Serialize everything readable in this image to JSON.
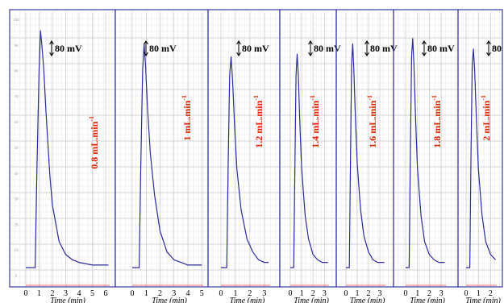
{
  "chart_data": [
    {
      "type": "line",
      "title": "",
      "flow_label": "0.8 mL.min",
      "flow_label_sup": "-1",
      "scale_label": "80 mV",
      "xlabel": "Time (min)",
      "xticks": [
        0,
        1,
        2,
        3,
        4,
        5,
        6
      ],
      "xlim": [
        0,
        6.3
      ],
      "ylim": [
        0,
        100
      ],
      "series": [
        {
          "x": [
            0,
            0.7,
            0.85,
            1.0,
            1.1,
            1.2,
            1.35,
            1.5,
            1.8,
            2.0,
            2.5,
            3.0,
            3.5,
            4.0,
            5.0,
            6.0
          ],
          "y": [
            4,
            4,
            45,
            80,
            95,
            90,
            80,
            65,
            40,
            28,
            14,
            9,
            7,
            6,
            5,
            5
          ]
        }
      ]
    },
    {
      "type": "line",
      "title": "",
      "flow_label": "1 mL.min",
      "flow_label_sup": "-1",
      "scale_label": "80 mV",
      "xlabel": "Time (min)",
      "xticks": [
        0,
        1,
        2,
        3,
        4,
        5
      ],
      "xlim": [
        0,
        5.1
      ],
      "ylim": [
        0,
        100
      ],
      "series": [
        {
          "x": [
            0,
            0.5,
            0.6,
            0.75,
            0.85,
            0.95,
            1.1,
            1.3,
            1.6,
            2.0,
            2.5,
            3.0,
            3.5,
            4.0
          ],
          "y": [
            4,
            4,
            40,
            80,
            90,
            82,
            65,
            48,
            32,
            18,
            10,
            7,
            6,
            5
          ]
        }
      ]
    },
    {
      "type": "line",
      "title": "",
      "flow_label": "1.2 mL.min",
      "flow_label_sup": "-1",
      "scale_label": "80 mV",
      "xlabel": "Time (min)",
      "xticks": [
        0,
        1,
        2,
        3
      ],
      "xlim": [
        0,
        3.4
      ],
      "ylim": [
        0,
        100
      ],
      "series": [
        {
          "x": [
            0,
            0.4,
            0.5,
            0.6,
            0.7,
            0.8,
            0.95,
            1.1,
            1.4,
            1.8,
            2.2,
            2.6,
            3.0,
            3.2
          ],
          "y": [
            4,
            4,
            45,
            78,
            85,
            76,
            58,
            42,
            26,
            15,
            10,
            7,
            6,
            6
          ]
        }
      ]
    },
    {
      "type": "line",
      "title": "",
      "flow_label": "1.4 mL.min",
      "flow_label_sup": "-1",
      "scale_label": "80 mV",
      "xlabel": "Time (min)",
      "xticks": [
        0,
        1,
        2,
        3
      ],
      "xlim": [
        0,
        3.4
      ],
      "ylim": [
        0,
        100
      ],
      "series": [
        {
          "x": [
            0,
            0.3,
            0.4,
            0.5,
            0.6,
            0.7,
            0.85,
            1.0,
            1.3,
            1.6,
            2.0,
            2.4,
            2.8,
            3.2
          ],
          "y": [
            4,
            4,
            40,
            78,
            86,
            78,
            58,
            42,
            24,
            15,
            9,
            7,
            6,
            6
          ]
        }
      ]
    },
    {
      "type": "line",
      "title": "",
      "flow_label": "1.6 mL.min",
      "flow_label_sup": "-1",
      "scale_label": "80 mV",
      "xlabel": "Time (min)",
      "xticks": [
        0,
        1,
        2,
        3
      ],
      "xlim": [
        0,
        3.5
      ],
      "ylim": [
        0,
        100
      ],
      "series": [
        {
          "x": [
            0,
            0.3,
            0.4,
            0.5,
            0.6,
            0.7,
            0.85,
            1.0,
            1.3,
            1.6,
            2.0,
            2.4,
            2.8,
            3.2
          ],
          "y": [
            4,
            4,
            45,
            82,
            90,
            80,
            60,
            44,
            26,
            16,
            10,
            7,
            6,
            6
          ]
        }
      ]
    },
    {
      "type": "line",
      "title": "",
      "flow_label": "1.8 mL.min",
      "flow_label_sup": "-1",
      "scale_label": "80 mV",
      "xlabel": "Time (min)",
      "xticks": [
        0,
        1,
        2,
        3
      ],
      "xlim": [
        0,
        3.4
      ],
      "ylim": [
        0,
        100
      ],
      "series": [
        {
          "x": [
            0,
            0.3,
            0.4,
            0.5,
            0.6,
            0.7,
            0.85,
            1.0,
            1.3,
            1.6,
            2.0,
            2.4,
            2.8,
            3.2
          ],
          "y": [
            4,
            4,
            48,
            85,
            92,
            82,
            60,
            42,
            24,
            14,
            9,
            7,
            6,
            6
          ]
        }
      ]
    },
    {
      "type": "line",
      "title": "",
      "flow_label": "2 mL.min",
      "flow_label_sup": "-1",
      "scale_label": "80 mV",
      "xlabel": "Time (min)",
      "xticks": [
        0,
        1,
        2
      ],
      "xlim": [
        0,
        2.5
      ],
      "ylim": [
        0,
        100
      ],
      "series": [
        {
          "x": [
            0,
            0.3,
            0.4,
            0.5,
            0.6,
            0.7,
            0.85,
            1.0,
            1.3,
            1.6,
            2.0,
            2.4
          ],
          "y": [
            4,
            4,
            48,
            82,
            88,
            80,
            60,
            42,
            24,
            14,
            9,
            7
          ]
        }
      ]
    }
  ],
  "left_scale": [
    "100",
    "90",
    "80",
    "70",
    "60",
    "50",
    "40",
    "30",
    "20",
    "10",
    "0"
  ],
  "colors": {
    "trace": "#2b2b9a",
    "flow_label": "#dd2200",
    "panel_border": "#3a3aa0",
    "grid": "#c8c8c8"
  }
}
